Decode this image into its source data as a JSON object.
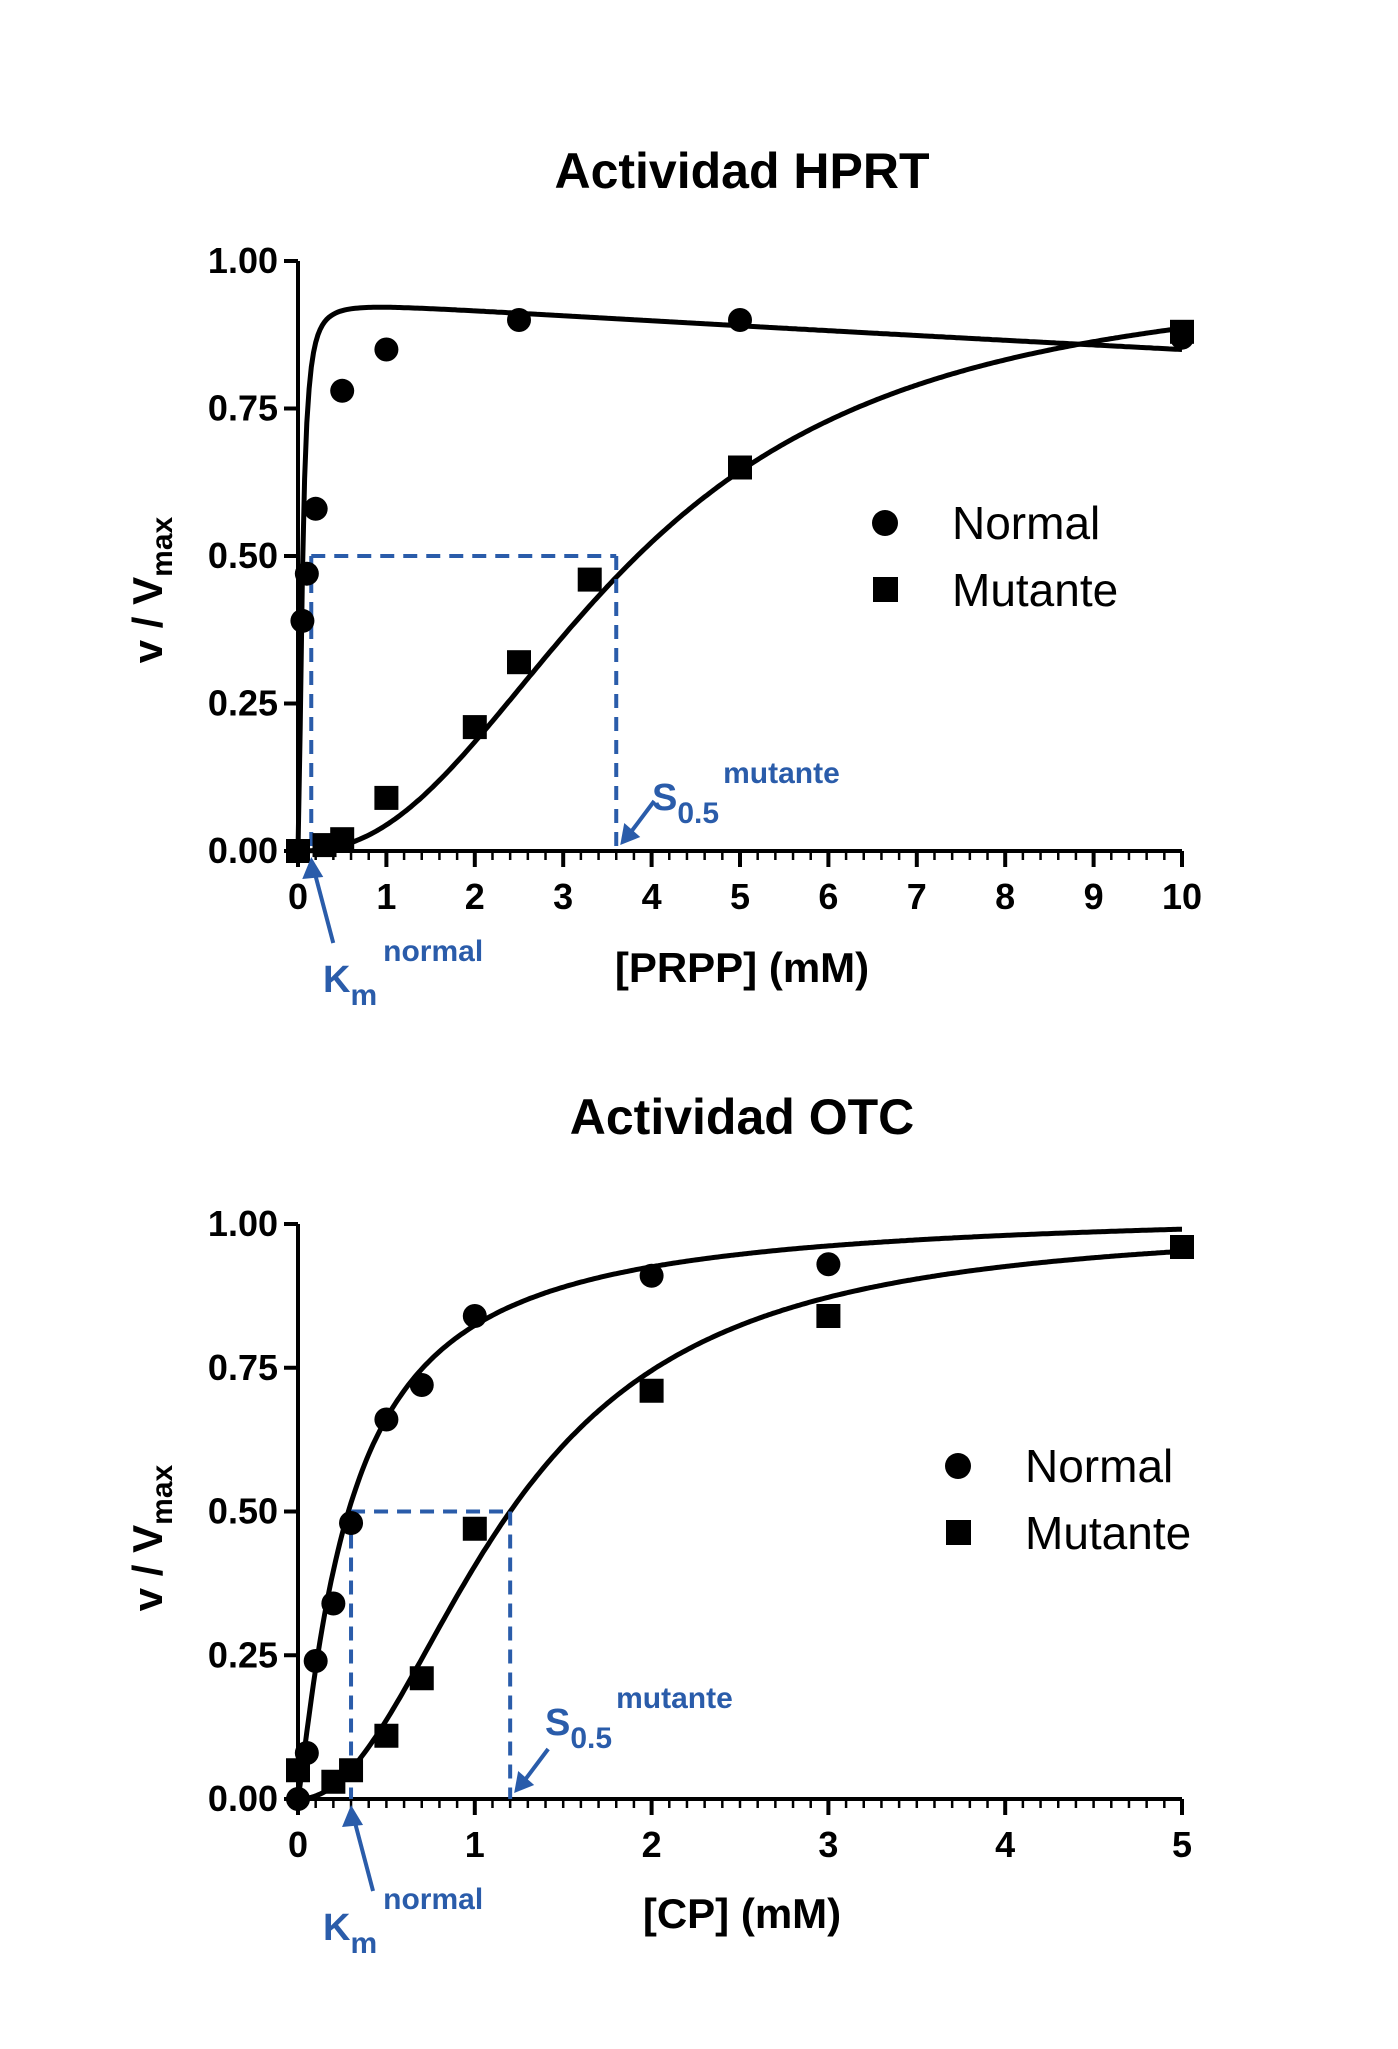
{
  "colors": {
    "ink": "#000000",
    "annotation": "#2a5caa"
  },
  "chart_data": [
    {
      "type": "scatter",
      "title": "Actividad HPRT",
      "xlabel": "[PRPP] (mM)",
      "ylabel": {
        "main": "v / V",
        "sub": "max"
      },
      "xlim": [
        0,
        10
      ],
      "ylim": [
        0,
        1
      ],
      "xticks": [
        "0",
        "1",
        "2",
        "3",
        "4",
        "5",
        "6",
        "7",
        "8",
        "9",
        "10"
      ],
      "xtick_values": [
        0,
        1,
        2,
        3,
        4,
        5,
        6,
        7,
        8,
        9,
        10
      ],
      "xminor_step": 0.2,
      "yticks": [
        "0.00",
        "0.25",
        "0.50",
        "0.75",
        "1.00"
      ],
      "ytick_values": [
        0,
        0.25,
        0.5,
        0.75,
        1.0
      ],
      "legend_position": "right",
      "series": [
        {
          "name": "Normal",
          "marker": "circle",
          "x": [
            0.05,
            0.1,
            0.2,
            0.5,
            1.0,
            2.5,
            5.0,
            10.0
          ],
          "y": [
            0.39,
            0.47,
            0.58,
            0.78,
            0.85,
            0.9,
            0.9,
            0.87
          ],
          "curve": {
            "model": "substrate_inhibition",
            "vmax": 0.935,
            "km": 0.05,
            "ki": 400,
            "n": 1.8
          }
        },
        {
          "name": "Mutante",
          "marker": "square",
          "x": [
            0.0,
            0.3,
            0.5,
            1.0,
            2.0,
            2.5,
            3.3,
            5.0,
            10.0
          ],
          "y": [
            0.0,
            0.01,
            0.02,
            0.09,
            0.21,
            0.32,
            0.46,
            0.65,
            0.88
          ],
          "curve": {
            "model": "hill",
            "vmax": 0.98,
            "s05": 3.77,
            "n": 2.3
          }
        }
      ],
      "guides": {
        "y_level": 0.5,
        "km_normal_x": 0.15,
        "s05_mutante_x": 3.6
      },
      "annotations": {
        "km": {
          "base": "K",
          "sub": "m",
          "sup": "normal"
        },
        "s05": {
          "base": "S",
          "sub": "0.5",
          "sup": "mutante"
        }
      }
    },
    {
      "type": "scatter",
      "title": "Actividad OTC",
      "xlabel": "[CP] (mM)",
      "ylabel": {
        "main": "v / V",
        "sub": "max"
      },
      "xlim": [
        0,
        5
      ],
      "ylim": [
        0,
        1
      ],
      "xticks": [
        "0",
        "1",
        "2",
        "3",
        "4",
        "5"
      ],
      "xtick_values": [
        0,
        1,
        2,
        3,
        4,
        5
      ],
      "xminor_step": 0.1,
      "yticks": [
        "0.00",
        "0.25",
        "0.50",
        "0.75",
        "1.00"
      ],
      "ytick_values": [
        0,
        0.25,
        0.5,
        0.75,
        1.0
      ],
      "legend_position": "right",
      "series": [
        {
          "name": "Normal",
          "marker": "circle",
          "x": [
            0.0,
            0.05,
            0.1,
            0.2,
            0.3,
            0.5,
            0.7,
            1.0,
            2.0,
            3.0
          ],
          "y": [
            0.0,
            0.08,
            0.24,
            0.34,
            0.48,
            0.66,
            0.72,
            0.84,
            0.91,
            0.93
          ],
          "curve": {
            "model": "hill",
            "vmax": 1.03,
            "s05": 0.3,
            "n": 1.15
          }
        },
        {
          "name": "Mutante",
          "marker": "square",
          "x": [
            0.0,
            0.2,
            0.3,
            0.5,
            0.7,
            1.0,
            2.0,
            3.0,
            5.0
          ],
          "y": [
            0.05,
            0.03,
            0.05,
            0.11,
            0.21,
            0.47,
            0.71,
            0.84,
            0.96
          ],
          "curve": {
            "model": "hill",
            "vmax": 1.0,
            "s05": 1.2,
            "n": 2.1
          }
        }
      ],
      "guides": {
        "y_level": 0.5,
        "km_normal_x": 0.3,
        "s05_mutante_x": 1.2
      },
      "annotations": {
        "km": {
          "base": "K",
          "sub": "m",
          "sup": "normal"
        },
        "s05": {
          "base": "S",
          "sub": "0.5",
          "sup": "mutante"
        }
      }
    }
  ]
}
